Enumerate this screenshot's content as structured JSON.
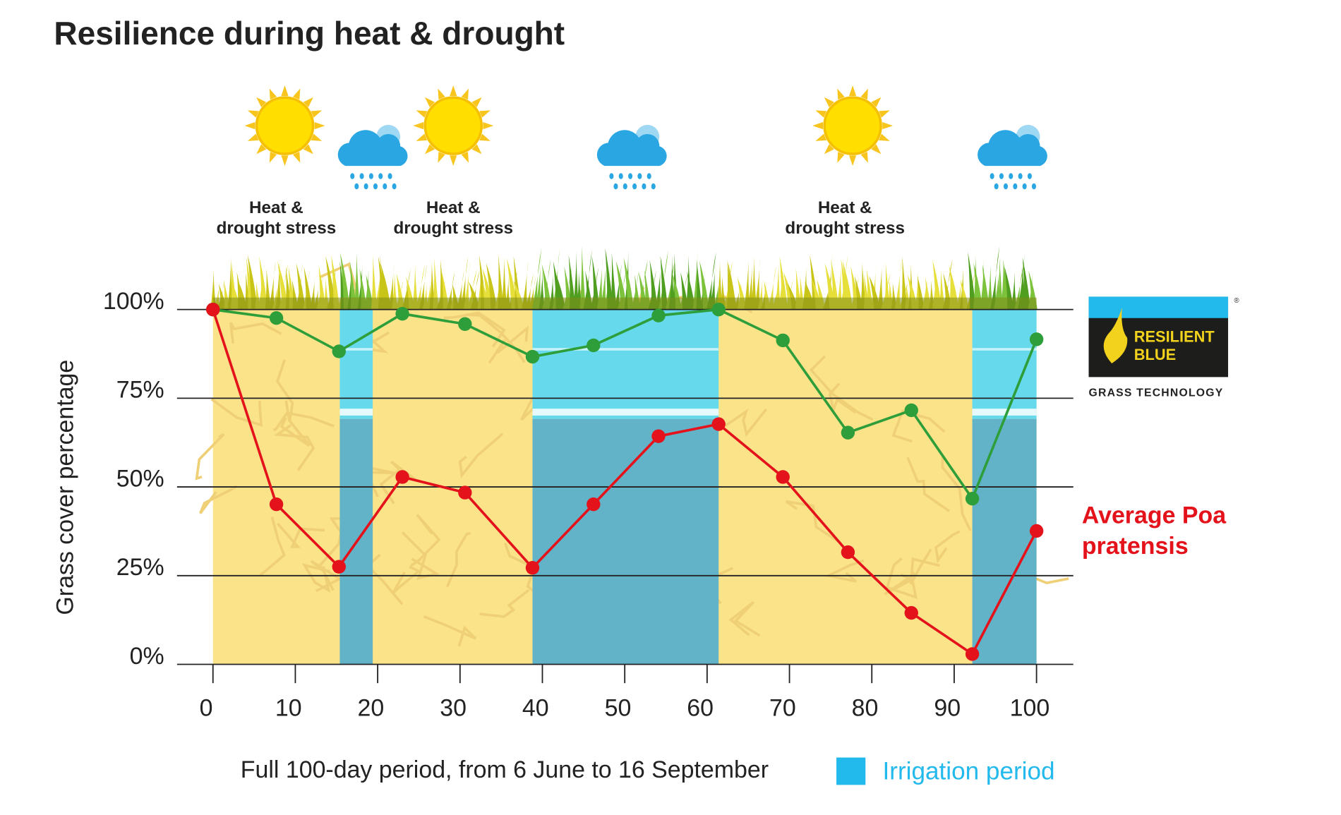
{
  "chart_data": {
    "type": "line",
    "title": "Resilience during heat & drought",
    "stress_label": [
      "Heat &",
      "drought stress"
    ],
    "x_label": "Full 100-day period, from 6 June to 16 September",
    "y_label": "Grass cover percentage",
    "x": [
      0,
      7.7,
      15.3,
      23,
      30.6,
      38.8,
      46.2,
      54.1,
      61.4,
      69.2,
      77.1,
      84.8,
      92.2,
      100
    ],
    "series": [
      {
        "name": "RESILIENT BLUE",
        "color": "#2e9e3a",
        "values": [
          100,
          97.6,
          88.2,
          98.8,
          95.9,
          86.7,
          89.9,
          98.3,
          100,
          91.3,
          65.3,
          71.6,
          46.7,
          91.6
        ]
      },
      {
        "name": "Average Poa pratensis",
        "color": "#e3121b",
        "values": [
          100,
          45.1,
          27.5,
          52.8,
          48.4,
          27.2,
          45.1,
          64.3,
          67.7,
          52.8,
          31.6,
          14.5,
          2.9,
          37.6
        ]
      }
    ],
    "logo_subtitle": "GRASS TECHNOLOGY",
    "logo_mark": "®",
    "irrigation": {
      "name": "Irrigation period",
      "color": "#22b9ec",
      "periods": [
        [
          15.4,
          19.4
        ],
        [
          38.8,
          61.4
        ],
        [
          92.2,
          100
        ]
      ]
    },
    "xlim": [
      0,
      100
    ],
    "ylim": [
      0,
      100
    ],
    "xticks": [
      0,
      10,
      20,
      30,
      40,
      50,
      60,
      70,
      80,
      90,
      100
    ],
    "yticks": [
      {
        "value": 0,
        "label": "0%"
      },
      {
        "value": 25,
        "label": "25%"
      },
      {
        "value": 50,
        "label": "50%"
      },
      {
        "value": 75,
        "label": "75%"
      },
      {
        "value": 100,
        "label": "100%"
      }
    ],
    "grid": true
  }
}
